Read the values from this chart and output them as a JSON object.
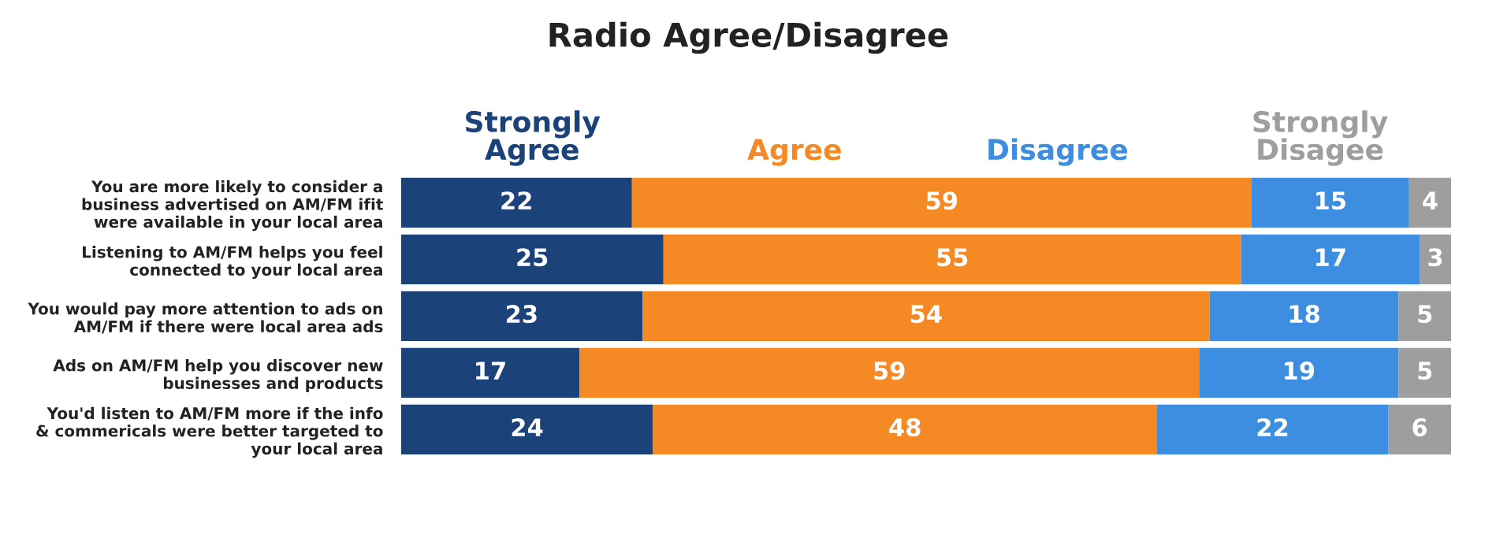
{
  "chart_data": {
    "type": "bar",
    "orientation": "horizontal",
    "stacked": true,
    "title": "Radio Agree/Disagree",
    "categories": [
      "You are more likely to consider a\nbusiness advertised on AM/FM ifit\nwere available in your local area",
      "Listening to AM/FM helps you feel\nconnected to your local area",
      "You would pay more attention to ads on\nAM/FM if there were local area ads",
      "Ads on AM/FM help you discover new\nbusinesses and products",
      "You'd listen to AM/FM more if the info\n& commericals were better targeted to\nyour local area"
    ],
    "series": [
      {
        "name": "Strongly\nAgree",
        "color": "#1b4279",
        "values": [
          22,
          25,
          23,
          17,
          24
        ]
      },
      {
        "name": "Agree",
        "color": "#f58a25",
        "values": [
          59,
          55,
          54,
          59,
          48
        ]
      },
      {
        "name": "Disagree",
        "color": "#3d8de0",
        "values": [
          15,
          17,
          18,
          19,
          22
        ]
      },
      {
        "name": "Strongly\nDisagee",
        "color": "#9e9e9e",
        "values": [
          4,
          3,
          5,
          5,
          6
        ]
      }
    ],
    "xlim": [
      0,
      100
    ],
    "tick_labels": "y",
    "data_labels": true,
    "legend": "top",
    "grid": false
  }
}
